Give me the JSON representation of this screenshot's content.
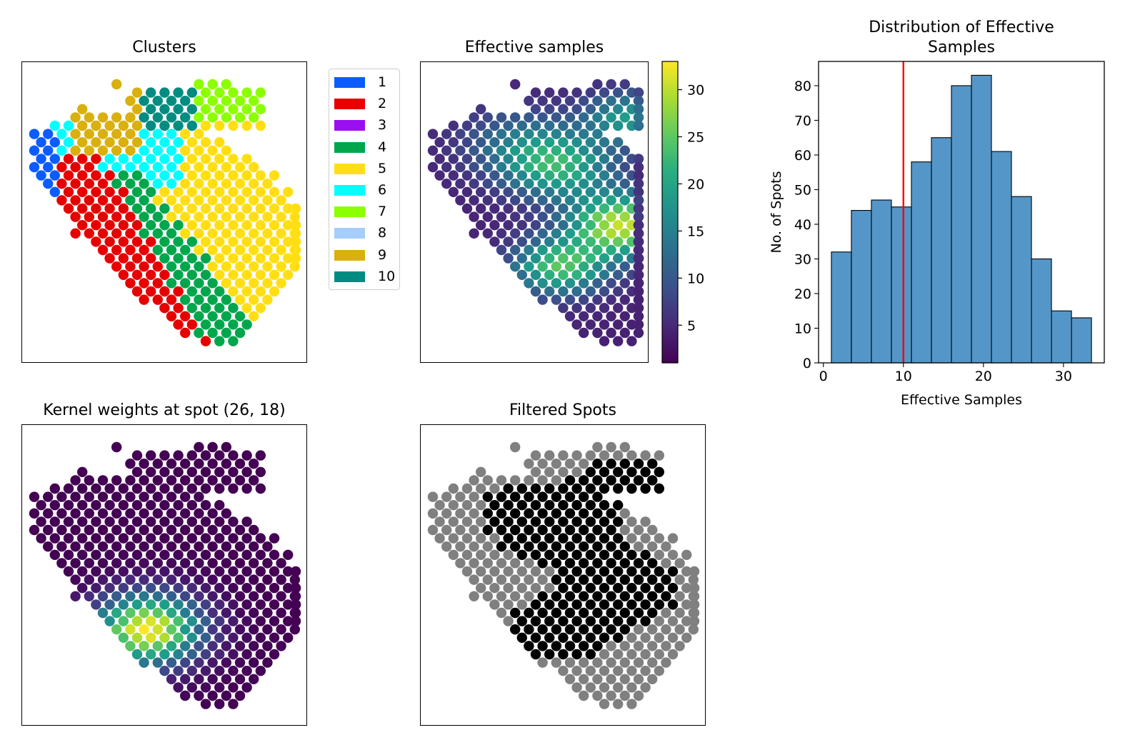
{
  "panels": {
    "clusters": {
      "title": "Clusters"
    },
    "effective": {
      "title": "Effective samples"
    },
    "histogram": {
      "title_line1": "Distribution of Effective",
      "title_line2": "Samples"
    },
    "kernel": {
      "title": "Kernel weights at spot (26, 18)"
    },
    "filtered": {
      "title": "Filtered Spots"
    }
  },
  "legend": {
    "items": [
      {
        "label": "1",
        "color": "#0a5cff"
      },
      {
        "label": "2",
        "color": "#e60000"
      },
      {
        "label": "3",
        "color": "#9a0ff0"
      },
      {
        "label": "4",
        "color": "#00a64c"
      },
      {
        "label": "5",
        "color": "#ffdf14"
      },
      {
        "label": "6",
        "color": "#00ffff"
      },
      {
        "label": "7",
        "color": "#8cff00"
      },
      {
        "label": "8",
        "color": "#a6cdfb"
      },
      {
        "label": "9",
        "color": "#d9b00d"
      },
      {
        "label": "10",
        "color": "#008c80"
      }
    ]
  },
  "colorbar": {
    "colormap": "viridis",
    "range": [
      1,
      33
    ],
    "ticks": [
      "5",
      "10",
      "15",
      "20",
      "25",
      "30"
    ]
  },
  "chart_data": [
    {
      "type": "scatter",
      "title": "Clusters",
      "description_type": "spatial spot map colored by cluster",
      "categories": [
        "1",
        "2",
        "3",
        "4",
        "5",
        "6",
        "7",
        "8",
        "9",
        "10"
      ],
      "axes_visible": false
    },
    {
      "type": "scatter",
      "title": "Effective samples",
      "colormap": "viridis",
      "colorbar_range": [
        1,
        33
      ],
      "colorbar_ticks": [
        5,
        10,
        15,
        20,
        25,
        30
      ],
      "axes_visible": false
    },
    {
      "type": "bar",
      "title": "Distribution of Effective Samples",
      "xlabel": "Effective Samples",
      "ylabel": "No. of Spots",
      "bin_edges": [
        1,
        3.5,
        6,
        8.5,
        11,
        13.5,
        16,
        18.5,
        21,
        23.5,
        26,
        28.5,
        31,
        33.5
      ],
      "values": [
        32,
        44,
        47,
        45,
        58,
        65,
        80,
        83,
        61,
        48,
        30,
        15,
        13
      ],
      "bar_color": "#5596c8",
      "vline": {
        "x": 10,
        "color": "#ff0000"
      },
      "xlim": [
        -0.6,
        35.1
      ],
      "ylim": [
        0,
        87
      ],
      "xticks": [
        "0",
        "10",
        "20",
        "30"
      ],
      "yticks": [
        "0",
        "10",
        "20",
        "30",
        "40",
        "50",
        "60",
        "70",
        "80"
      ]
    },
    {
      "type": "scatter",
      "title": "Kernel weights at spot (26, 18)",
      "colormap": "viridis",
      "center_spot": [
        26,
        18
      ],
      "axes_visible": false
    },
    {
      "type": "scatter",
      "title": "Filtered Spots",
      "colors": {
        "kept": "#000000",
        "filtered": "#808080"
      },
      "axes_visible": false
    }
  ]
}
